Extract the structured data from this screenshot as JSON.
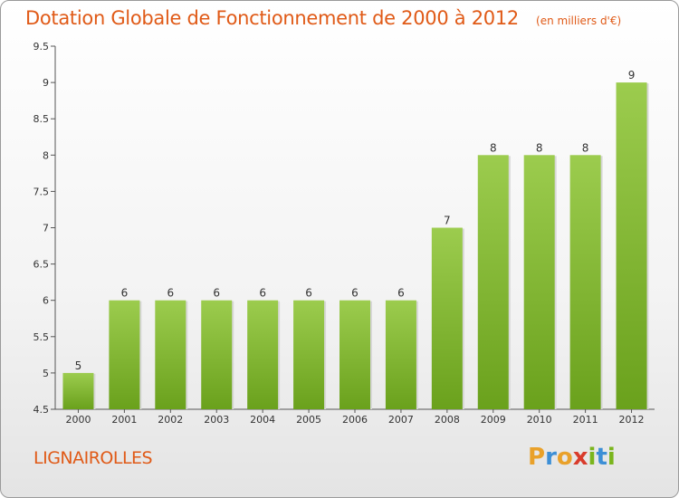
{
  "chart_data": {
    "type": "bar",
    "title": "Dotation Globale de Fonctionnement de 2000 à 2012",
    "unit_note": "(en milliers d'€)",
    "categories": [
      "2000",
      "2001",
      "2002",
      "2003",
      "2004",
      "2005",
      "2006",
      "2007",
      "2008",
      "2009",
      "2010",
      "2011",
      "2012"
    ],
    "values": [
      5,
      6,
      6,
      6,
      6,
      6,
      6,
      6,
      7,
      8,
      8,
      8,
      9
    ],
    "data_labels": [
      "5",
      "6",
      "6",
      "6",
      "6",
      "6",
      "6",
      "6",
      "7",
      "8",
      "8",
      "8",
      "9"
    ],
    "y_ticks": [
      "4.5",
      "5",
      "5.5",
      "6",
      "6.5",
      "7",
      "7.5",
      "8",
      "8.5",
      "9",
      "9.5"
    ],
    "ylim": [
      4.5,
      9.5
    ],
    "grid": false,
    "bar_color_top": "#9ccc4e",
    "bar_color_bottom": "#6aa11c"
  },
  "commune": "LIGNAIROLLES",
  "logo": {
    "letters": [
      "P",
      "r",
      "o",
      "x",
      "i",
      "t",
      "i"
    ],
    "colors": [
      "#e9a12a",
      "#3d8fd6",
      "#e9a12a",
      "#d93c2c",
      "#7ab51d",
      "#3d8fd6",
      "#7ab51d"
    ]
  },
  "colors": {
    "title": "#e05a17",
    "axis": "#555555",
    "text": "#333333"
  }
}
